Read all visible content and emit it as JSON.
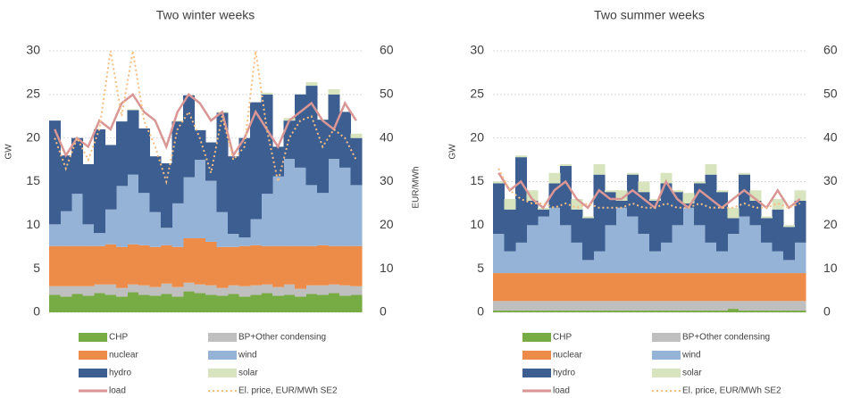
{
  "chart_data": [
    {
      "type": "bar",
      "stacked": true,
      "title": "Two winter weeks",
      "ylabel": "GW",
      "y2label": "EUR/MWh",
      "ylim": [
        0,
        30
      ],
      "yticks": [
        0,
        5,
        10,
        15,
        20,
        25,
        30
      ],
      "y2lim": [
        0,
        60
      ],
      "y2ticks": [
        0,
        10,
        20,
        30,
        40,
        50,
        60
      ],
      "grid": true,
      "series": [
        {
          "name": "CHP",
          "color": "#77ab43",
          "values": [
            2.0,
            1.8,
            2.1,
            1.9,
            2.2,
            2.0,
            1.8,
            2.3,
            2.0,
            1.9,
            2.1,
            1.8,
            2.4,
            2.2,
            2.0,
            1.9,
            2.1,
            1.8,
            2.0,
            2.2,
            1.9,
            2.0,
            1.8,
            2.1,
            2.0,
            2.2,
            1.9,
            2.0
          ]
        },
        {
          "name": "BP+Other condensing",
          "color": "#bfbfbf",
          "values": [
            1.0,
            1.2,
            0.9,
            1.1,
            1.0,
            1.2,
            1.0,
            0.9,
            1.1,
            1.0,
            1.2,
            1.1,
            1.0,
            1.0,
            1.1,
            0.9,
            1.0,
            1.2,
            1.1,
            1.0,
            1.0,
            1.2,
            0.9,
            1.0,
            1.1,
            1.0,
            1.2,
            1.0
          ]
        },
        {
          "name": "nuclear",
          "color": "#ed8c48",
          "values": [
            4.6,
            4.6,
            4.6,
            4.6,
            4.4,
            4.6,
            4.7,
            4.6,
            4.6,
            4.6,
            4.4,
            4.6,
            5.1,
            5.3,
            5.0,
            4.7,
            4.4,
            4.6,
            4.6,
            4.4,
            4.7,
            4.4,
            4.9,
            4.5,
            4.6,
            4.4,
            4.5,
            4.6
          ]
        },
        {
          "name": "wind",
          "color": "#95b3d7",
          "values": [
            2.5,
            4,
            6,
            2.5,
            1.5,
            4,
            7,
            8,
            6,
            4,
            2,
            5,
            7,
            9,
            7,
            4,
            1.5,
            1,
            3,
            6,
            8,
            10,
            9,
            7,
            6,
            10,
            9,
            7
          ]
        },
        {
          "name": "hydro",
          "color": "#3c5e91",
          "values": [
            11.9,
            6.4,
            6.4,
            6.9,
            11.9,
            7.4,
            7.4,
            7.4,
            7.4,
            6.4,
            7.4,
            9.4,
            9.4,
            3.4,
            4.4,
            11.4,
            8.9,
            11.4,
            13.4,
            11.4,
            3.4,
            4.4,
            8.4,
            11.4,
            8.4,
            7.4,
            6.4,
            5.4
          ]
        },
        {
          "name": "solar",
          "color": "#d7e4bd",
          "values": [
            0,
            0,
            0,
            0,
            0,
            0,
            0,
            0.1,
            0,
            0,
            0,
            0.1,
            0,
            0,
            0,
            0.1,
            0,
            0,
            0,
            0.2,
            0,
            0.3,
            0,
            0.4,
            0,
            0.6,
            0,
            0.5
          ]
        },
        {
          "name": "load",
          "color": "#d99694",
          "type": "line",
          "values": [
            21,
            18,
            20,
            19,
            22,
            21,
            24,
            25,
            23,
            22,
            19,
            23,
            25,
            24,
            22,
            23,
            18,
            20,
            23,
            21,
            19,
            22,
            23,
            24,
            22,
            21,
            24,
            22
          ]
        },
        {
          "name": "El. price, EUR/MWh SE2",
          "color": "#f6be82",
          "type": "line",
          "axis": "y2",
          "values": [
            40,
            33,
            40,
            35,
            42,
            60,
            45,
            60,
            44,
            38,
            30,
            42,
            46,
            40,
            32,
            45,
            35,
            38,
            60,
            42,
            30,
            40,
            44,
            45,
            38,
            42,
            40,
            35
          ]
        }
      ]
    },
    {
      "type": "bar",
      "stacked": true,
      "title": "Two summer weeks",
      "ylabel": "GW",
      "y2label": "EUR/MWh",
      "ylim": [
        0,
        30
      ],
      "yticks": [
        0,
        5,
        10,
        15,
        20,
        25,
        30
      ],
      "y2lim": [
        0,
        60
      ],
      "y2ticks": [
        0,
        10,
        20,
        30,
        40,
        50,
        60
      ],
      "grid": true,
      "series": [
        {
          "name": "CHP",
          "color": "#77ab43",
          "values": [
            0.2,
            0.2,
            0.2,
            0.2,
            0.2,
            0.2,
            0.2,
            0.2,
            0.2,
            0.2,
            0.2,
            0.2,
            0.2,
            0.2,
            0.2,
            0.2,
            0.2,
            0.2,
            0.2,
            0.2,
            0.2,
            0.4,
            0.2,
            0.2,
            0.2,
            0.2,
            0.2,
            0.2
          ]
        },
        {
          "name": "BP+Other condensing",
          "color": "#bfbfbf",
          "values": [
            1.1,
            1.1,
            1.1,
            1.1,
            1.1,
            1.1,
            1.1,
            1.1,
            1.1,
            1.1,
            1.1,
            1.1,
            1.1,
            1.1,
            1.1,
            1.1,
            1.1,
            1.1,
            1.1,
            1.1,
            1.1,
            0.9,
            1.1,
            1.1,
            1.1,
            1.1,
            1.1,
            1.1
          ]
        },
        {
          "name": "nuclear",
          "color": "#ed8c48",
          "values": [
            3.2,
            3.2,
            3.2,
            3.2,
            3.2,
            3.2,
            3.2,
            3.2,
            3.2,
            3.2,
            3.2,
            3.2,
            3.2,
            3.2,
            3.2,
            3.2,
            3.2,
            3.2,
            3.2,
            3.2,
            3.2,
            3.2,
            3.2,
            3.2,
            3.2,
            3.2,
            3.2,
            3.2
          ]
        },
        {
          "name": "wind",
          "color": "#95b3d7",
          "values": [
            4.5,
            2.5,
            3.5,
            5.5,
            6.5,
            7.5,
            5.5,
            3.5,
            1.5,
            2.5,
            5.5,
            7.5,
            6.5,
            4.5,
            2.5,
            3.5,
            5.5,
            7.5,
            5.5,
            3.5,
            2.5,
            4.5,
            6.5,
            5.5,
            3.5,
            2.5,
            1.5,
            3.5
          ]
        },
        {
          "name": "hydro",
          "color": "#3c5e91",
          "values": [
            5.8,
            4.8,
            9.8,
            2.8,
            0.8,
            2.8,
            6.8,
            3.8,
            4.8,
            8.8,
            3.8,
            0.8,
            4.8,
            4.8,
            5.8,
            6.8,
            3.8,
            0.5,
            4.8,
            7.8,
            6.8,
            1.8,
            4.8,
            2.8,
            2.8,
            4.8,
            3.8,
            4.8
          ]
        },
        {
          "name": "solar",
          "color": "#d7e4bd",
          "values": [
            0.2,
            1.2,
            0.2,
            1.2,
            0.2,
            1.2,
            0.2,
            1.2,
            0.2,
            1.2,
            0.2,
            1.2,
            0.2,
            1.2,
            0.2,
            1.2,
            0.2,
            1.2,
            0.2,
            1.2,
            0.2,
            1.2,
            0.2,
            1.2,
            0.2,
            1.2,
            0.2,
            1.2
          ]
        },
        {
          "name": "load",
          "color": "#d99694",
          "type": "line",
          "values": [
            16,
            14,
            15,
            13,
            12,
            14,
            15,
            13,
            12,
            14,
            13,
            13,
            14,
            13,
            12,
            15,
            13,
            12,
            14,
            13,
            12,
            13,
            14,
            13,
            12,
            14,
            12,
            13
          ]
        },
        {
          "name": "El. price, EUR/MWh SE2",
          "color": "#f6be82",
          "type": "line",
          "axis": "y2",
          "values": [
            33,
            28,
            26,
            25,
            25,
            24,
            25,
            24,
            25,
            24,
            24,
            24,
            25,
            24,
            24,
            25,
            24,
            24,
            25,
            24,
            24,
            24,
            25,
            24,
            24,
            25,
            24,
            25
          ]
        }
      ]
    }
  ]
}
